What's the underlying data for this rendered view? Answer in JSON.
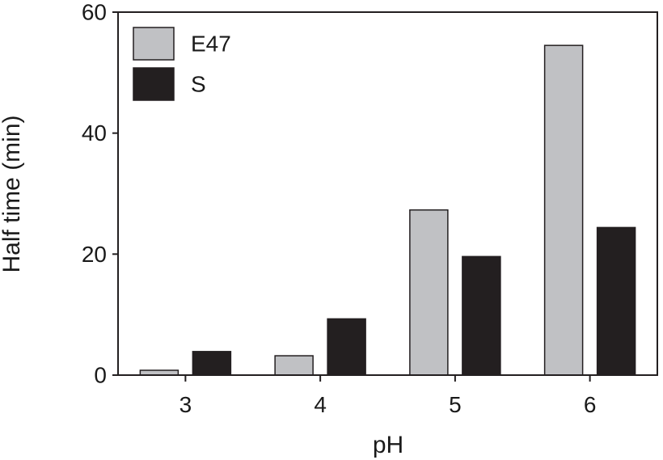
{
  "chart_data": {
    "type": "bar",
    "title": "",
    "xlabel": "pH",
    "ylabel": "Half time (min)",
    "categories": [
      "3",
      "4",
      "5",
      "6"
    ],
    "ylim": [
      0,
      60
    ],
    "yticks": [
      "0",
      "20",
      "40",
      "60"
    ],
    "grid": false,
    "legend_position": "top-left",
    "series": [
      {
        "name": "E47",
        "color": "#c0c1c4",
        "values": [
          0.8,
          3.2,
          27.3,
          54.5
        ]
      },
      {
        "name": "S",
        "color": "#231f20",
        "values": [
          3.9,
          9.3,
          19.6,
          24.4
        ]
      }
    ]
  }
}
